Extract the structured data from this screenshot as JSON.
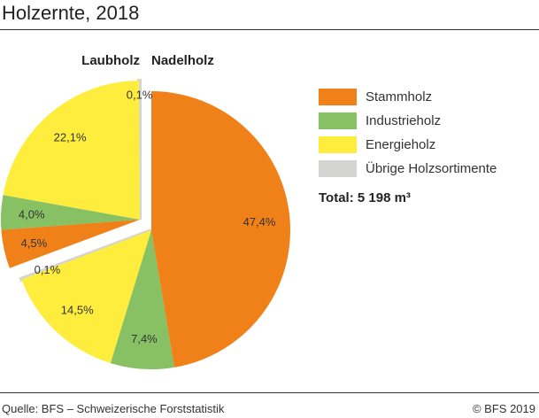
{
  "title": "Holzernte, 2018",
  "footer": {
    "source": "Quelle: BFS – Schweizerische Forststatistik",
    "copyright": "© BFS 2019"
  },
  "chart_data": {
    "type": "pie",
    "title": "Holzernte, 2018",
    "total_label": "Total: 5 198 m³",
    "legend_position": "right",
    "categories": [
      "Stammholz",
      "Industrieholz",
      "Energieholz",
      "Übrige Holzsortimente"
    ],
    "colors": [
      "#f08119",
      "#87c164",
      "#ffed3d",
      "#d4d5d3"
    ],
    "groups": [
      {
        "name": "Nadelholz",
        "values": [
          47.4,
          7.4,
          14.5,
          0.1
        ],
        "labels": [
          "47,4%",
          "7,4%",
          "14,5%",
          "0,1%"
        ]
      },
      {
        "name": "Laubholz",
        "values": [
          4.5,
          4.0,
          22.1,
          0.1
        ],
        "labels": [
          "4,5%",
          "4,0%",
          "22,1%",
          "0,1%"
        ]
      }
    ]
  }
}
